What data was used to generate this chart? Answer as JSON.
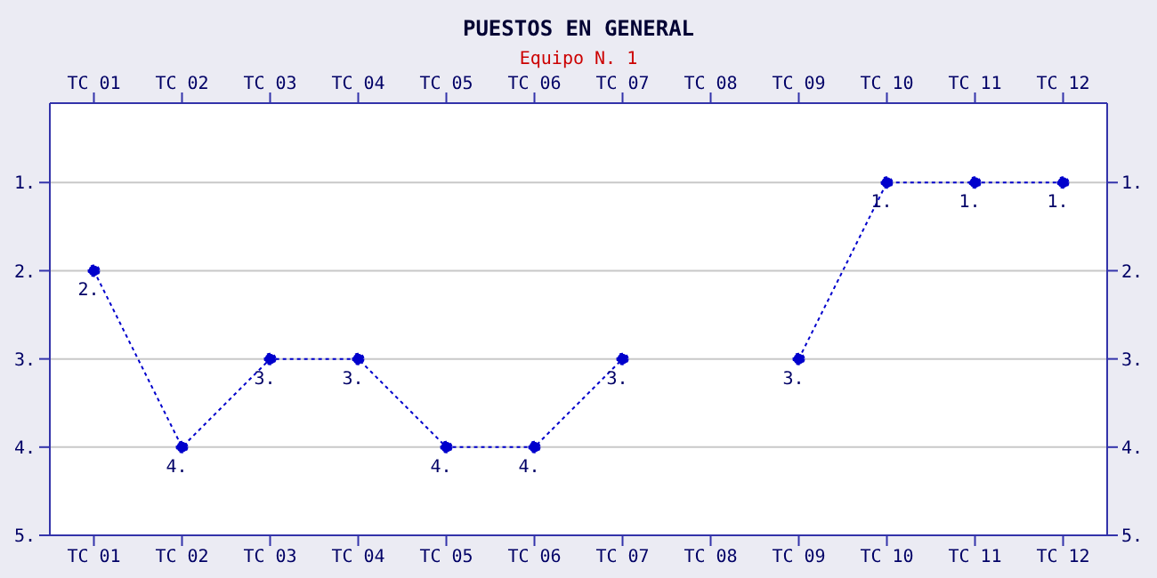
{
  "chart_data": {
    "type": "line",
    "title": "PUESTOS EN GENERAL",
    "subtitle": "Equipo N. 1",
    "categories": [
      "TC 01",
      "TC 02",
      "TC 03",
      "TC 04",
      "TC 05",
      "TC 06",
      "TC 07",
      "TC 08",
      "TC 09",
      "TC 10",
      "TC 11",
      "TC 12"
    ],
    "series": [
      {
        "color": "#0000cc",
        "values": [
          2,
          4,
          3,
          3,
          4,
          4,
          3,
          null,
          3,
          1,
          1,
          1
        ],
        "value_labels": [
          "2.",
          "4.",
          "3.",
          "3.",
          "4.",
          "4.",
          "3.",
          null,
          "3.",
          "1.",
          "1.",
          "1."
        ]
      }
    ],
    "ylim": [
      5,
      0.1
    ],
    "yticks": [
      {
        "value": 1,
        "label": "1."
      },
      {
        "value": 2,
        "label": "2."
      },
      {
        "value": 3,
        "label": "3."
      },
      {
        "value": 4,
        "label": "4."
      },
      {
        "value": 5,
        "label": "5."
      }
    ],
    "y2lim": [
      5,
      0.1
    ],
    "y2ticks": [
      {
        "value": 1,
        "label": "1."
      },
      {
        "value": 2,
        "label": "2."
      },
      {
        "value": 3,
        "label": "3."
      },
      {
        "value": 4,
        "label": "4."
      },
      {
        "value": 5,
        "label": "5."
      }
    ],
    "grid": "y",
    "marker": "circle",
    "line_style": "dotted"
  }
}
